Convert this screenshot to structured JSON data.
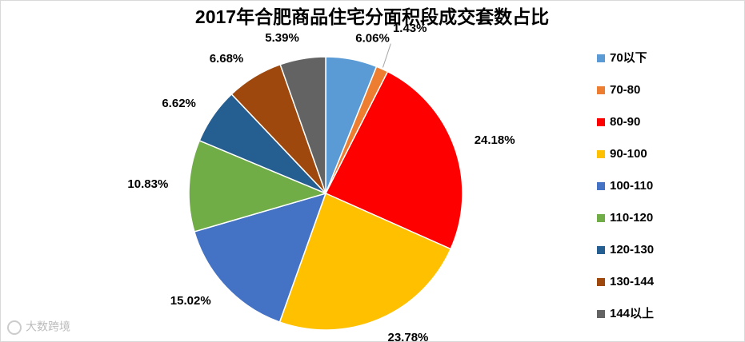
{
  "chart_data": {
    "type": "pie",
    "title": "2017年合肥商品住宅分面积段成交套数占比",
    "categories": [
      "70以下",
      "70-80",
      "80-90",
      "90-100",
      "100-110",
      "110-120",
      "120-130",
      "130-144",
      "144以上"
    ],
    "values": [
      6.06,
      1.43,
      24.18,
      23.78,
      15.02,
      10.83,
      6.62,
      6.68,
      5.39
    ],
    "value_labels": [
      "6.06%",
      "1.43%",
      "24.18%",
      "23.78%",
      "15.02%",
      "10.83%",
      "6.62%",
      "6.68%",
      "5.39%"
    ],
    "colors": [
      "#5b9bd5",
      "#ed7d31",
      "#ff0000",
      "#ffc000",
      "#4472c4",
      "#70ad47",
      "#255e91",
      "#9e480e",
      "#636363"
    ],
    "legend": "right",
    "watermark": "大数跨境"
  }
}
